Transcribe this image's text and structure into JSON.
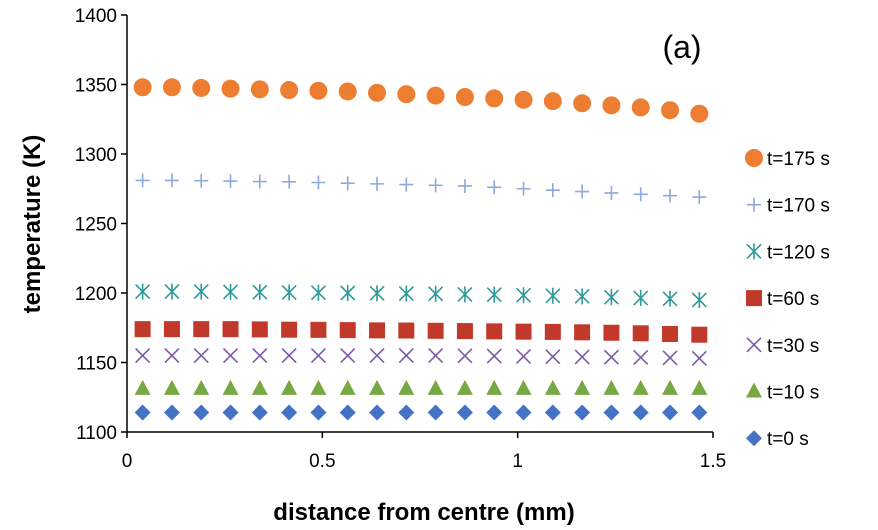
{
  "chart_data": {
    "type": "scatter",
    "title": "",
    "annotation": "(a)",
    "xlabel": "distance from centre (mm)",
    "ylabel": "temperature (K)",
    "xlim": [
      0,
      1.5
    ],
    "ylim": [
      1100,
      1400
    ],
    "xticks": [
      0,
      0.5,
      1,
      1.5
    ],
    "xtick_labels": [
      "0",
      "0.5",
      "1",
      "1.5"
    ],
    "yticks": [
      1100,
      1150,
      1200,
      1250,
      1300,
      1350,
      1400
    ],
    "ytick_labels": [
      "1100",
      "1150",
      "1200",
      "1250",
      "1300",
      "1350",
      "1400"
    ],
    "grid": false,
    "legend_position": "right",
    "x": [
      0.04,
      0.115,
      0.19,
      0.265,
      0.34,
      0.415,
      0.49,
      0.565,
      0.64,
      0.715,
      0.79,
      0.865,
      0.94,
      1.015,
      1.09,
      1.165,
      1.24,
      1.315,
      1.39,
      1.465
    ],
    "series": [
      {
        "name": "t=175 s",
        "marker": "circle",
        "color": "#ED7D31",
        "values": [
          1348,
          1348,
          1347.5,
          1347,
          1346.5,
          1346,
          1345.5,
          1345,
          1344,
          1343,
          1342,
          1341,
          1340,
          1339,
          1338,
          1336.5,
          1335,
          1333.5,
          1331.5,
          1329
        ]
      },
      {
        "name": "t=170 s",
        "marker": "plus",
        "color": "#8EA9DB",
        "values": [
          1281,
          1281,
          1280.8,
          1280.5,
          1280.2,
          1280,
          1279.5,
          1279,
          1278.5,
          1278,
          1277.5,
          1277,
          1276,
          1275,
          1274,
          1273,
          1272,
          1271,
          1270,
          1269
        ]
      },
      {
        "name": "t=120 s",
        "marker": "asterisk",
        "color": "#2E9A9A",
        "values": [
          1201,
          1201,
          1201,
          1200.8,
          1200.6,
          1200.4,
          1200.2,
          1200,
          1199.8,
          1199.6,
          1199.4,
          1199,
          1198.8,
          1198.4,
          1198,
          1197.6,
          1197,
          1196.4,
          1195.8,
          1195
        ]
      },
      {
        "name": "t=60 s",
        "marker": "square",
        "color": "#C0392B",
        "values": [
          1174,
          1174,
          1174,
          1174,
          1173.8,
          1173.6,
          1173.5,
          1173.3,
          1173.1,
          1173,
          1172.8,
          1172.6,
          1172.4,
          1172.2,
          1172,
          1171.7,
          1171.4,
          1171,
          1170.5,
          1170
        ]
      },
      {
        "name": "t=30 s",
        "marker": "cross",
        "color": "#7B5AA6",
        "values": [
          1155,
          1155,
          1155,
          1155,
          1155,
          1155,
          1155,
          1155,
          1155,
          1155,
          1155,
          1154.8,
          1154.6,
          1154.4,
          1154.2,
          1154,
          1153.8,
          1153.6,
          1153.4,
          1153
        ]
      },
      {
        "name": "t=10 s",
        "marker": "triangle",
        "color": "#77A843",
        "values": [
          1131,
          1131,
          1131,
          1131,
          1131,
          1131,
          1131,
          1131,
          1131,
          1131,
          1131,
          1131,
          1131,
          1131,
          1131,
          1131,
          1131,
          1131,
          1131,
          1131
        ]
      },
      {
        "name": "t=0 s",
        "marker": "diamond",
        "color": "#4472C4",
        "values": [
          1114,
          1114,
          1114,
          1114,
          1114,
          1114,
          1114,
          1114,
          1114,
          1114,
          1114,
          1114,
          1114,
          1114,
          1114,
          1114,
          1114,
          1114,
          1114,
          1114
        ]
      }
    ]
  }
}
